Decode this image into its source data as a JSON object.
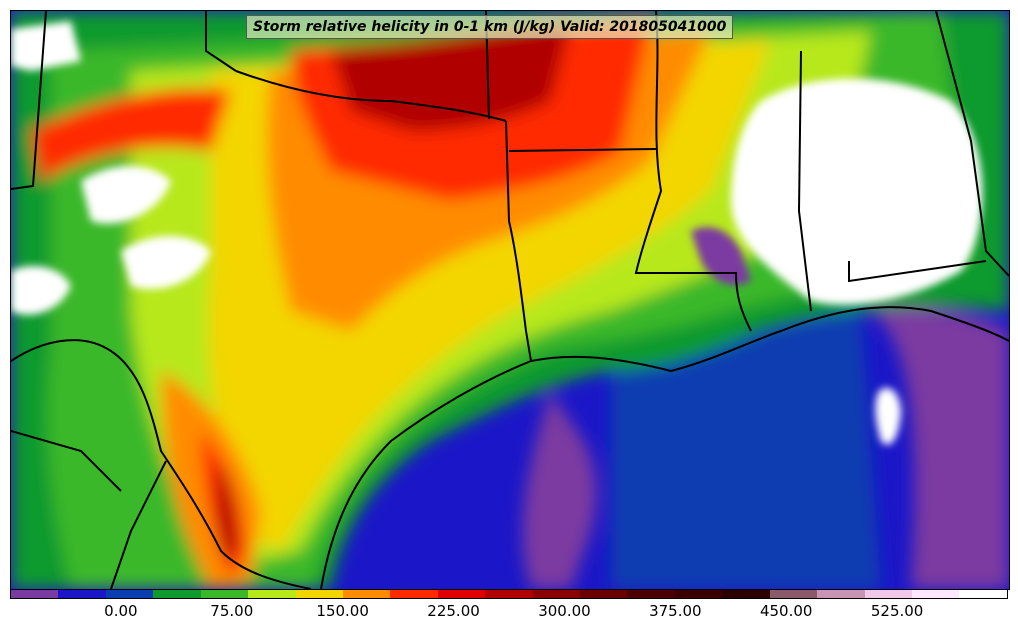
{
  "title": "Storm relative helicity in 0-1 km (J/kg) Valid: 201805041000",
  "colorbar": {
    "colors": [
      "#7b3aa0",
      "#1b17c8",
      "#0a3db0",
      "#0e9a2e",
      "#3bb82a",
      "#b7e81a",
      "#f3d600",
      "#ff8c00",
      "#ff2a00",
      "#e00000",
      "#b00000",
      "#8b0000",
      "#6b0000",
      "#4a0000",
      "#3a0000",
      "#2a0000",
      "#8a5a6a",
      "#c994b4",
      "#f2c8e8",
      "#ffe8ff",
      "#ffffff"
    ],
    "ticks": [
      {
        "value": 0,
        "label": "0.00"
      },
      {
        "value": 75,
        "label": "75.00"
      },
      {
        "value": 150,
        "label": "150.00"
      },
      {
        "value": 225,
        "label": "225.00"
      },
      {
        "value": 300,
        "label": "300.00"
      },
      {
        "value": 375,
        "label": "375.00"
      },
      {
        "value": 450,
        "label": "450.00"
      },
      {
        "value": 525,
        "label": "525.00"
      }
    ],
    "range": [
      -75,
      600
    ]
  }
}
